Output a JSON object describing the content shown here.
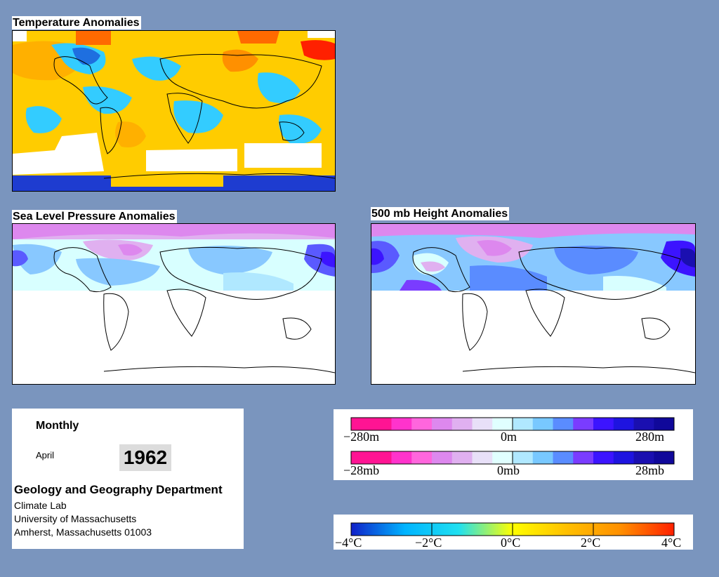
{
  "panels": {
    "temperature": {
      "title": "Temperature Anomalies"
    },
    "slp": {
      "title": "Sea Level Pressure Anomalies"
    },
    "height": {
      "title": "500 mb Height Anomalies"
    }
  },
  "info": {
    "period": "Monthly",
    "month": "April",
    "year": "1962",
    "department": "Geology and Geography Department",
    "lab": "Climate Lab",
    "university": "University of Massachusetts",
    "address": "Amherst, Massachusetts 01003"
  },
  "legend_height": {
    "labels": [
      "−280m",
      "0m",
      "280m"
    ],
    "colors": [
      "#ff1493",
      "#ff1493",
      "#ff33cc",
      "#ff66dd",
      "#dd88ee",
      "#e0b0f0",
      "#e8e0f8",
      "#e0ffff",
      "#b0e8ff",
      "#78c8ff",
      "#5a8cff",
      "#7a3cff",
      "#3c14ff",
      "#1e14e0",
      "#1a0fb0",
      "#10089a"
    ]
  },
  "legend_pressure": {
    "labels": [
      "−28mb",
      "0mb",
      "28mb"
    ],
    "colors": [
      "#ff1493",
      "#ff1493",
      "#ff33cc",
      "#ff66dd",
      "#dd88ee",
      "#e0b0f0",
      "#e8e0f8",
      "#e0ffff",
      "#b0e8ff",
      "#78c8ff",
      "#5a8cff",
      "#7a3cff",
      "#3c14ff",
      "#1e14e0",
      "#1a0fb0",
      "#10089a"
    ]
  },
  "legend_temperature": {
    "labels": [
      "−4°C",
      "−2°C",
      "0°C",
      "2°C",
      "4°C"
    ],
    "stops": [
      "#1020c8",
      "#00b4ff",
      "#20e0f0",
      "#ffff00",
      "#ffc000",
      "#ff9000",
      "#ff2000"
    ]
  },
  "colors": {
    "background": "#7a95be",
    "temp_warm": "#ffcc00",
    "temp_cool": "#33ccff",
    "temp_missing": "#ffffff",
    "anomaly_low": "#88c8ff",
    "anomaly_high": "#e0b0f0",
    "anomaly_neutral": "#d8ffff"
  }
}
